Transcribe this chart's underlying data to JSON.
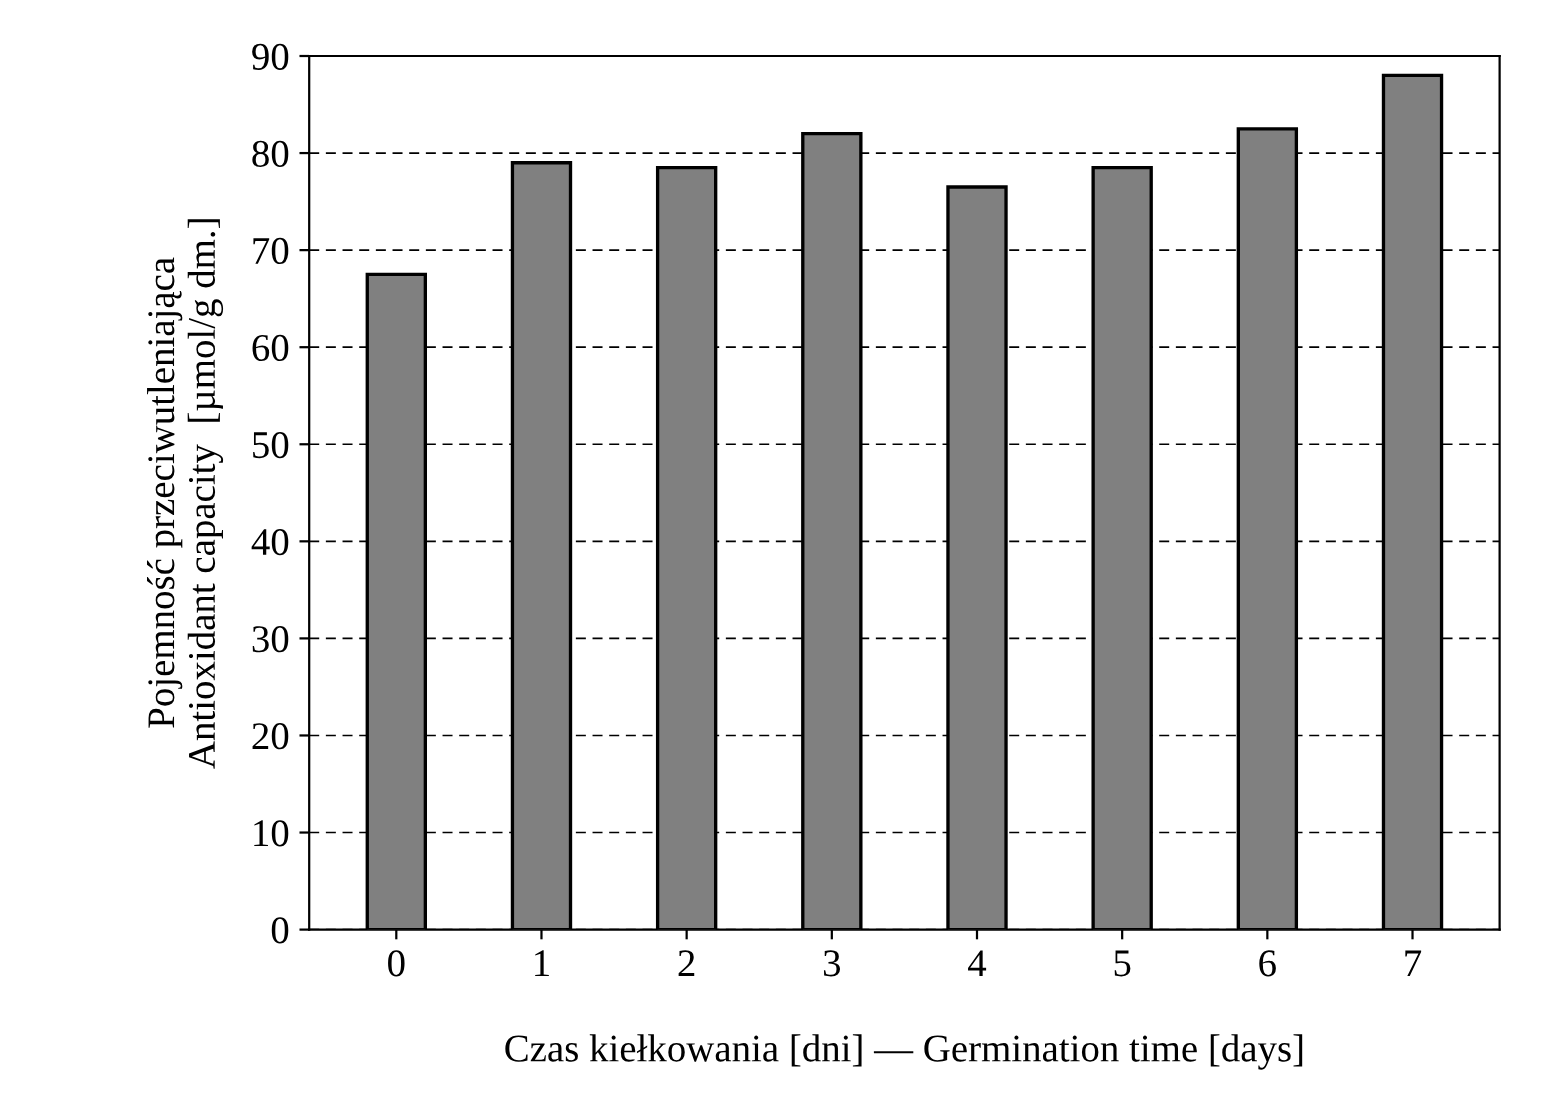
{
  "chart_data": {
    "type": "bar",
    "xlabel": "Czas kiełkowania [dni] — Germination time [days]",
    "ylabel": "Pojemność przeciwutleniająca\nAntioxidant capacity  [µmol/g dm.]",
    "categories": [
      "0",
      "1",
      "2",
      "3",
      "4",
      "5",
      "6",
      "7"
    ],
    "values": [
      67.5,
      79,
      78.5,
      82,
      76.5,
      78.5,
      82.5,
      88
    ],
    "color": "#808080",
    "ylim": [
      0,
      90
    ],
    "yticks": [
      0,
      10,
      20,
      30,
      40,
      50,
      60,
      70,
      80,
      90
    ],
    "grid": "y"
  }
}
